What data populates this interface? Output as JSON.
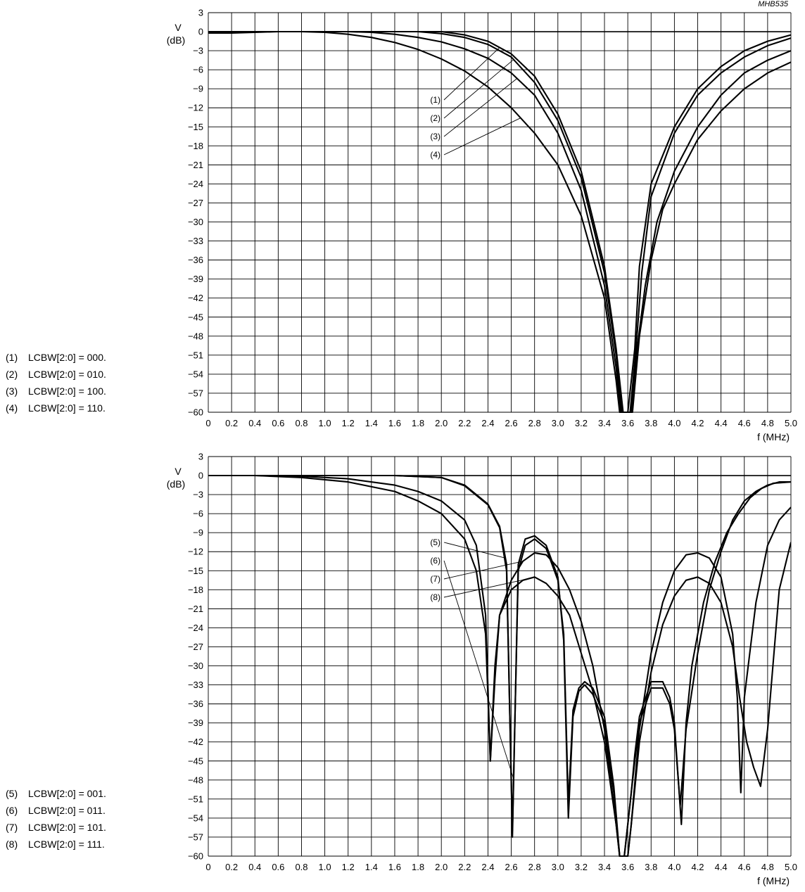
{
  "figure_code": "MHB535",
  "chart_data": [
    {
      "type": "line",
      "ylabel_symbol": "V",
      "ylabel_unit": "(dB)",
      "xlabel": "f (MHz)",
      "xlim": [
        0,
        5.0
      ],
      "ylim": [
        -60,
        3
      ],
      "grid": true,
      "x_ticks": [
        "0",
        "0.2",
        "0.4",
        "0.6",
        "0.8",
        "1.0",
        "1.2",
        "1.4",
        "1.6",
        "1.8",
        "2.0",
        "2.2",
        "2.4",
        "2.6",
        "2.8",
        "3.0",
        "3.2",
        "3.4",
        "3.6",
        "3.8",
        "4.0",
        "4.2",
        "4.4",
        "4.6",
        "4.8",
        "5.0"
      ],
      "y_ticks": [
        "3",
        "0",
        "−3",
        "−6",
        "−9",
        "−12",
        "−15",
        "−18",
        "−21",
        "−24",
        "−27",
        "−30",
        "−33",
        "−36",
        "−39",
        "−42",
        "−45",
        "−48",
        "−51",
        "−54",
        "−57",
        "−60"
      ],
      "callouts": [
        "(1)",
        "(2)",
        "(3)",
        "(4)"
      ],
      "legend": [
        {
          "num": "(1)",
          "text": "LCBW[2:0] = 000."
        },
        {
          "num": "(2)",
          "text": "LCBW[2:0] = 010."
        },
        {
          "num": "(3)",
          "text": "LCBW[2:0] = 100."
        },
        {
          "num": "(4)",
          "text": "LCBW[2:0] = 110."
        }
      ],
      "series": [
        {
          "x": [
            0,
            0.2,
            0.4,
            0.6,
            0.8,
            1.0,
            1.2,
            1.4,
            1.6,
            1.8,
            2.0,
            2.2,
            2.4,
            2.6,
            2.8,
            3.0,
            3.2,
            3.4,
            3.5,
            3.56,
            3.6,
            3.66,
            3.7,
            3.8,
            4.0,
            4.2,
            4.4,
            4.6,
            4.8,
            5.0
          ],
          "y": [
            0,
            0,
            0,
            0,
            0,
            0,
            0,
            0,
            0,
            0,
            0,
            -0.5,
            -1.5,
            -3.5,
            -7,
            -13,
            -22,
            -37,
            -50,
            -60,
            -60,
            -50,
            -37,
            -24,
            -15,
            -9,
            -5.5,
            -3,
            -1.5,
            -0.5
          ]
        },
        {
          "x": [
            0,
            0.2,
            0.4,
            0.6,
            0.8,
            1.0,
            1.2,
            1.4,
            1.6,
            1.8,
            2.0,
            2.2,
            2.4,
            2.6,
            2.8,
            3.0,
            3.2,
            3.4,
            3.5,
            3.55,
            3.62,
            3.67,
            3.72,
            3.8,
            4.0,
            4.2,
            4.4,
            4.6,
            4.8,
            5.0
          ],
          "y": [
            0,
            0,
            0,
            0,
            0,
            0,
            0,
            0,
            0,
            0,
            -0.3,
            -0.9,
            -2,
            -4,
            -8,
            -14,
            -23,
            -38,
            -51,
            -60,
            -60,
            -50,
            -38,
            -26,
            -16,
            -10,
            -6.5,
            -4,
            -2.2,
            -1
          ]
        },
        {
          "x": [
            0,
            0.2,
            0.4,
            0.6,
            0.8,
            1.0,
            1.2,
            1.4,
            1.6,
            1.8,
            2.0,
            2.2,
            2.4,
            2.6,
            2.8,
            3.0,
            3.2,
            3.4,
            3.5,
            3.54,
            3.63,
            3.68,
            3.75,
            3.85,
            4.0,
            4.2,
            4.4,
            4.6,
            4.8,
            5.0
          ],
          "y": [
            0,
            0,
            0,
            0,
            0,
            0,
            0,
            -0.1,
            -0.4,
            -0.9,
            -1.6,
            -2.7,
            -4.2,
            -6.5,
            -10,
            -16,
            -25,
            -40,
            -53,
            -60,
            -60,
            -50,
            -40,
            -30,
            -22,
            -15,
            -10,
            -6.5,
            -4.5,
            -3
          ]
        },
        {
          "x": [
            0,
            0.2,
            0.4,
            0.6,
            0.8,
            1.0,
            1.2,
            1.4,
            1.6,
            1.8,
            2.0,
            2.2,
            2.4,
            2.6,
            2.8,
            3.0,
            3.2,
            3.4,
            3.5,
            3.53,
            3.64,
            3.7,
            3.8,
            3.9,
            4.0,
            4.2,
            4.4,
            4.6,
            4.8,
            5.0
          ],
          "y": [
            -0.2,
            -0.2,
            -0.1,
            0,
            0,
            -0.1,
            -0.4,
            -0.9,
            -1.7,
            -2.8,
            -4.3,
            -6.2,
            -8.7,
            -12,
            -16,
            -21,
            -29,
            -42,
            -55,
            -60,
            -60,
            -48,
            -36,
            -28,
            -24,
            -17,
            -12.5,
            -9,
            -6.5,
            -4.8
          ]
        }
      ]
    },
    {
      "type": "line",
      "ylabel_symbol": "V",
      "ylabel_unit": "(dB)",
      "xlabel": "f (MHz)",
      "xlim": [
        0,
        5.0
      ],
      "ylim": [
        -60,
        3
      ],
      "grid": true,
      "x_ticks": [
        "0",
        "0.2",
        "0.4",
        "0.6",
        "0.8",
        "1.0",
        "1.2",
        "1.4",
        "1.6",
        "1.8",
        "2.0",
        "2.2",
        "2.4",
        "2.6",
        "2.8",
        "3.0",
        "3.2",
        "3.4",
        "3.6",
        "3.8",
        "4.0",
        "4.2",
        "4.4",
        "4.6",
        "4.8",
        "5.0"
      ],
      "y_ticks": [
        "3",
        "0",
        "−3",
        "−6",
        "−9",
        "−12",
        "−15",
        "−18",
        "−21",
        "−24",
        "−27",
        "−30",
        "−33",
        "−36",
        "−39",
        "−42",
        "−45",
        "−48",
        "−51",
        "−54",
        "−57",
        "−60"
      ],
      "callouts": [
        "(5)",
        "(6)",
        "(7)",
        "(8)"
      ],
      "legend": [
        {
          "num": "(5)",
          "text": "LCBW[2:0] = 001."
        },
        {
          "num": "(6)",
          "text": "LCBW[2:0] = 011."
        },
        {
          "num": "(7)",
          "text": "LCBW[2:0] = 101."
        },
        {
          "num": "(8)",
          "text": "LCBW[2:0] = 111."
        }
      ],
      "series": [
        {
          "x": [
            0,
            1.0,
            1.6,
            2.0,
            2.2,
            2.4,
            2.5,
            2.56,
            2.61,
            2.66,
            2.72,
            2.8,
            2.9,
            3.0,
            3.05,
            3.09,
            3.13,
            3.18,
            3.23,
            3.3,
            3.4,
            3.48,
            3.53,
            3.57,
            3.63,
            3.66,
            3.7,
            3.8,
            3.9,
            3.96,
            4.0,
            4.05,
            4.1,
            4.2,
            4.3,
            4.4,
            4.5,
            4.6,
            4.7,
            4.8,
            4.9,
            5.0
          ],
          "y": [
            0,
            0,
            0,
            -0.3,
            -1.5,
            -4.5,
            -8,
            -14,
            -57,
            -14,
            -10,
            -9.5,
            -11,
            -16,
            -26,
            -54,
            -38,
            -34,
            -33,
            -34.5,
            -39,
            -50,
            -60,
            -60,
            -50,
            -45,
            -39,
            -33.5,
            -33.5,
            -36,
            -40,
            -52,
            -40,
            -28,
            -18,
            -12,
            -7,
            -4,
            -2.5,
            -1.5,
            -1,
            -1
          ]
        },
        {
          "x": [
            0,
            1.0,
            1.6,
            2.0,
            2.2,
            2.4,
            2.5,
            2.56,
            2.61,
            2.66,
            2.72,
            2.8,
            2.9,
            3.0,
            3.05,
            3.09,
            3.13,
            3.18,
            3.23,
            3.3,
            3.4,
            3.48,
            3.53,
            3.57,
            3.63,
            3.66,
            3.7,
            3.8,
            3.9,
            3.96,
            4.0,
            4.06,
            4.1,
            4.15,
            4.25,
            4.35,
            4.45,
            4.55,
            4.65,
            4.75,
            4.85,
            5.0
          ],
          "y": [
            0,
            0,
            0,
            -0.3,
            -1.6,
            -4.6,
            -8.2,
            -15,
            -56,
            -15,
            -11,
            -10,
            -11.5,
            -16.5,
            -25,
            -52,
            -37,
            -33.5,
            -32.5,
            -33.5,
            -38,
            -49,
            -60,
            -60,
            -50,
            -44,
            -38,
            -32.5,
            -32.5,
            -35,
            -39,
            -55,
            -39,
            -30,
            -20,
            -13.5,
            -9,
            -6,
            -3.5,
            -2,
            -1.2,
            -1
          ]
        },
        {
          "x": [
            0,
            0.4,
            0.8,
            1.2,
            1.6,
            1.8,
            2.0,
            2.2,
            2.3,
            2.38,
            2.42,
            2.46,
            2.5,
            2.6,
            2.7,
            2.8,
            2.9,
            3.0,
            3.1,
            3.2,
            3.3,
            3.4,
            3.5,
            3.53,
            3.6,
            3.63,
            3.7,
            3.8,
            3.9,
            4.0,
            4.1,
            4.2,
            4.3,
            4.4,
            4.5,
            4.54,
            4.57,
            4.6,
            4.7,
            4.8,
            4.9,
            5.0
          ],
          "y": [
            0,
            0,
            -0.1,
            -0.5,
            -1.5,
            -2.5,
            -4,
            -7,
            -11,
            -22,
            -45,
            -32,
            -22,
            -16.5,
            -13.5,
            -12.2,
            -12.5,
            -14.5,
            -18,
            -23,
            -30,
            -40,
            -55,
            -60,
            -60,
            -55,
            -40,
            -28,
            -20,
            -15,
            -12.5,
            -12.2,
            -13,
            -16,
            -25,
            -35,
            -50,
            -35,
            -20,
            -11,
            -7,
            -5
          ]
        },
        {
          "x": [
            0,
            0.4,
            0.8,
            1.2,
            1.6,
            1.8,
            2.0,
            2.2,
            2.3,
            2.38,
            2.42,
            2.46,
            2.5,
            2.6,
            2.7,
            2.8,
            2.9,
            3.0,
            3.1,
            3.2,
            3.3,
            3.4,
            3.5,
            3.53,
            3.6,
            3.63,
            3.7,
            3.8,
            3.9,
            4.0,
            4.1,
            4.2,
            4.3,
            4.4,
            4.5,
            4.56,
            4.62,
            4.68,
            4.74,
            4.8,
            4.9,
            5.0
          ],
          "y": [
            0,
            0,
            -0.3,
            -1,
            -2.5,
            -4,
            -6,
            -10,
            -15,
            -25,
            -45,
            -30,
            -22,
            -18,
            -16.5,
            -16,
            -17,
            -19,
            -22,
            -28,
            -34,
            -42,
            -55,
            -60,
            -60,
            -55,
            -42,
            -31,
            -23.5,
            -19,
            -16.5,
            -16,
            -17,
            -20,
            -27,
            -35,
            -42,
            -46,
            -49,
            -40,
            -18,
            -10.5
          ]
        }
      ]
    }
  ]
}
